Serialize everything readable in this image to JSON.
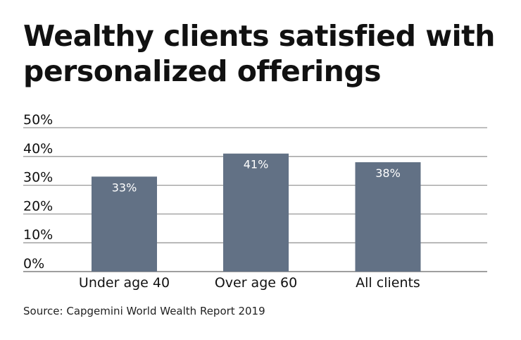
{
  "title": "Wealthy clients satisfied with personalized offerings",
  "source": "Source: Capgemini World Wealth Report 2019",
  "colors": {
    "bar": "#627185",
    "grid": "#999999",
    "axis": "#666666",
    "bar_label": "#ffffff"
  },
  "chart_data": {
    "type": "bar",
    "title": "Wealthy clients satisfied with personalized offerings",
    "categories": [
      "Under age 40",
      "Over age 60",
      "All clients"
    ],
    "values": [
      33,
      41,
      38
    ],
    "value_labels": [
      "33%",
      "41%",
      "38%"
    ],
    "ylim": [
      0,
      50
    ],
    "yticks": [
      0,
      10,
      20,
      30,
      40,
      50
    ],
    "ytick_labels": [
      "0%",
      "10%",
      "20%",
      "30%",
      "40%",
      "50%"
    ],
    "grid": true,
    "legend": "none"
  }
}
